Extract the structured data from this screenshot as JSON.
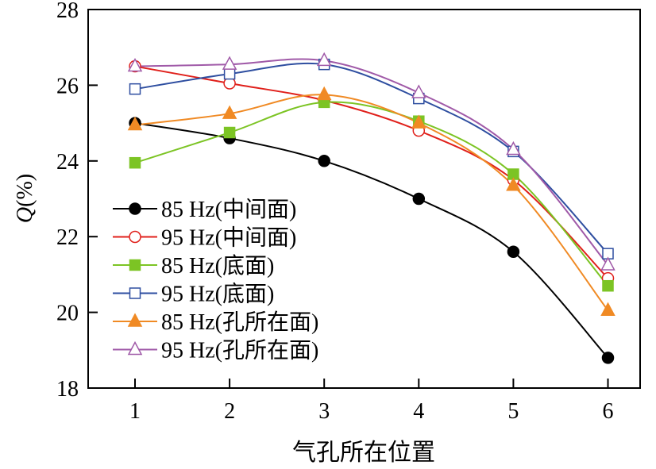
{
  "chart_data": {
    "type": "line",
    "title": "",
    "xlabel": "气孔所在位置",
    "ylabel_italic": "Q",
    "ylabel_suffix": "(%)",
    "x": [
      1,
      2,
      3,
      4,
      5,
      6
    ],
    "xlim": [
      0.5,
      7.0
    ],
    "ylim": [
      18,
      28
    ],
    "xticks": [
      1,
      2,
      3,
      4,
      5,
      6
    ],
    "yticks": [
      18,
      20,
      22,
      24,
      26,
      28
    ],
    "grid": false,
    "legend_position": "bottom-left",
    "series": [
      {
        "name": "85 Hz(中间面)",
        "color": "#000000",
        "marker": "circle",
        "filled": true,
        "values": [
          25.0,
          24.6,
          24.0,
          23.0,
          21.6,
          18.8
        ]
      },
      {
        "name": "95 Hz(中间面)",
        "color": "#e0201b",
        "marker": "circle",
        "filled": false,
        "values": [
          26.5,
          26.05,
          25.6,
          24.8,
          23.5,
          20.9
        ]
      },
      {
        "name": "85 Hz(底面)",
        "color": "#7cc424",
        "marker": "square",
        "filled": true,
        "values": [
          23.95,
          24.75,
          25.55,
          25.05,
          23.65,
          20.7
        ]
      },
      {
        "name": "95 Hz(底面)",
        "color": "#2e4ea0",
        "marker": "square",
        "filled": false,
        "values": [
          25.9,
          26.3,
          26.55,
          25.65,
          24.25,
          21.55
        ]
      },
      {
        "name": "85 Hz(孔所在面)",
        "color": "#f08a24",
        "marker": "triangle",
        "filled": true,
        "values": [
          24.95,
          25.25,
          25.75,
          25.0,
          23.35,
          20.05
        ]
      },
      {
        "name": "95 Hz(孔所在面)",
        "color": "#a05aa8",
        "marker": "triangle",
        "filled": false,
        "values": [
          26.5,
          26.55,
          26.65,
          25.8,
          24.3,
          21.25
        ]
      }
    ]
  }
}
